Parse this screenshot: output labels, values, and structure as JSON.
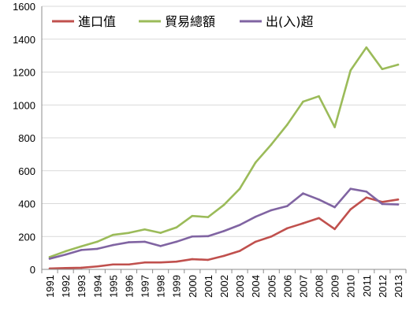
{
  "chart_data": {
    "type": "line",
    "title": "",
    "xlabel": "",
    "ylabel": "",
    "ylim": [
      0,
      1600
    ],
    "yticks": [
      0,
      200,
      400,
      600,
      800,
      1000,
      1200,
      1400,
      1600
    ],
    "grid": true,
    "legend_position": "top-left",
    "categories": [
      "1991",
      "1992",
      "1993",
      "1994",
      "1995",
      "1996",
      "1997",
      "1998",
      "1999",
      "2000",
      "2001",
      "2002",
      "2003",
      "2004",
      "2005",
      "2006",
      "2007",
      "2008",
      "2009",
      "2010",
      "2011",
      "2012",
      "2013"
    ],
    "series": [
      {
        "name": "進口值",
        "color": "#c0504d",
        "values": [
          5,
          8,
          10,
          18,
          30,
          30,
          42,
          42,
          47,
          62,
          58,
          82,
          112,
          168,
          200,
          250,
          280,
          312,
          245,
          365,
          437,
          410,
          425
        ]
      },
      {
        "name": "貿易總額",
        "color": "#9bbb59",
        "values": [
          75,
          110,
          140,
          168,
          210,
          222,
          243,
          222,
          255,
          325,
          318,
          392,
          490,
          650,
          760,
          880,
          1020,
          1053,
          865,
          1210,
          1350,
          1218,
          1245
        ]
      },
      {
        "name": "出(入)超",
        "color": "#8064a2",
        "values": [
          65,
          90,
          118,
          125,
          148,
          165,
          168,
          142,
          168,
          200,
          202,
          233,
          270,
          320,
          360,
          385,
          462,
          425,
          378,
          490,
          473,
          398,
          395
        ]
      }
    ]
  }
}
